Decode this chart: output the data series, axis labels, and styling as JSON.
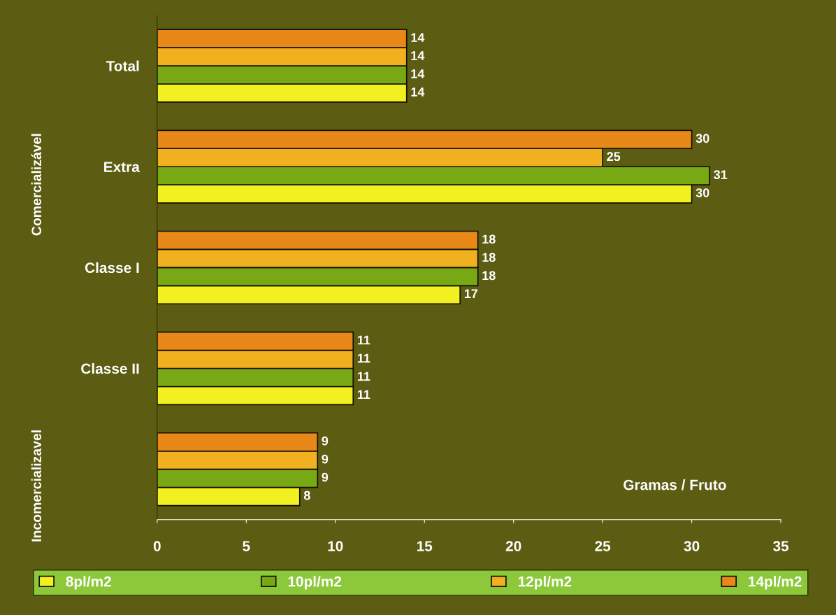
{
  "chart_data": {
    "type": "bar",
    "orientation": "horizontal",
    "xlabel": "Gramas / Fruto",
    "categories": [
      "Total",
      "Extra",
      "Classe I",
      "Classe II",
      null
    ],
    "series": [
      {
        "name": "8pl/m2",
        "color": "#f2f020",
        "values": [
          14,
          30,
          17,
          11,
          8
        ]
      },
      {
        "name": "10pl/m2",
        "color": "#78a814",
        "values": [
          14,
          31,
          18,
          11,
          9
        ]
      },
      {
        "name": "12pl/m2",
        "color": "#f0b020",
        "values": [
          14,
          25,
          18,
          11,
          9
        ]
      },
      {
        "name": "14pl/m2",
        "color": "#e88818",
        "values": [
          14,
          30,
          18,
          11,
          9
        ]
      }
    ],
    "xlim": [
      0,
      35
    ],
    "xticks": [
      0,
      5,
      10,
      15,
      20,
      25,
      30,
      35
    ],
    "data_labels": true,
    "grid": false,
    "legend": "bottom",
    "annotations": [
      "Comercializável",
      "Incomercializavel"
    ]
  }
}
